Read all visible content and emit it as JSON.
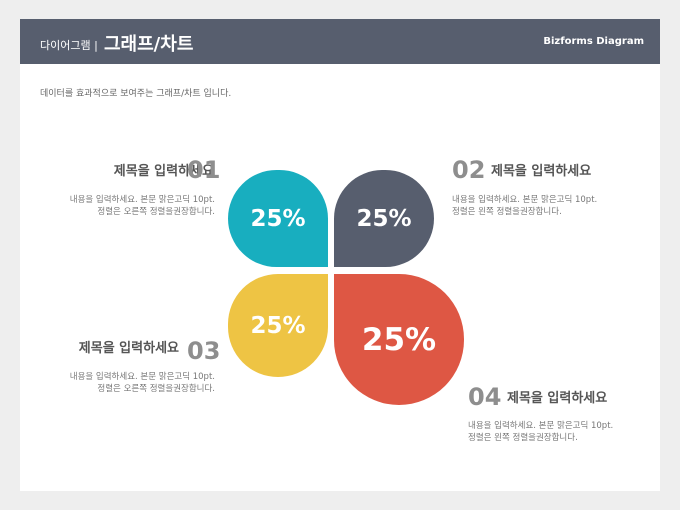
{
  "header": {
    "category": "다이어그램 |",
    "title": "그래프/차트",
    "brand": "Bizforms Diagram"
  },
  "subtitle": "데이터를 효과적으로 보여주는 그래프/차트 입니다.",
  "items": [
    {
      "number": "01",
      "title": "제목을 입력하세요",
      "desc_line1": "내용을 입력하세요. 본문 맑은고딕 10pt.",
      "desc_line2": "정렬은 오른쪽 정렬을권장합니다.",
      "value": "25%",
      "color": "#18aebf"
    },
    {
      "number": "02",
      "title": "제목을 입력하세요",
      "desc_line1": "내용을 입력하세요. 본문 맑은고딕 10pt.",
      "desc_line2": "정렬은 왼쪽 정렬을권장합니다.",
      "value": "25%",
      "color": "#575e6e"
    },
    {
      "number": "03",
      "title": "제목을 입력하세요",
      "desc_line1": "내용을 입력하세요. 본문 맑은고딕 10pt.",
      "desc_line2": "정렬은 오른쪽 정렬을권장합니다.",
      "value": "25%",
      "color": "#eec444"
    },
    {
      "number": "04",
      "title": "제목을 입력하세요",
      "desc_line1": "내용을 입력하세요. 본문 맑은고딕 10pt.",
      "desc_line2": "정렬은 왼쪽 정렬을권장합니다.",
      "value": "25%",
      "color": "#de5744"
    }
  ]
}
